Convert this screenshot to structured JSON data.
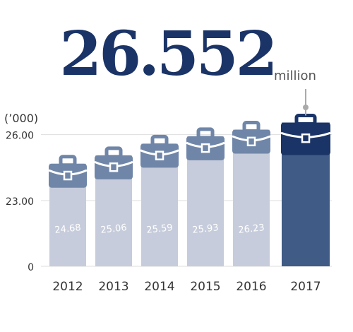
{
  "chart_data": {
    "type": "bar",
    "headline_unit": "million",
    "y_unit_label": "(’000)",
    "categories": [
      "2012",
      "2013",
      "2014",
      "2015",
      "2016",
      "2017"
    ],
    "values": [
      24.68,
      25.06,
      25.59,
      25.93,
      26.23,
      26.552
    ],
    "value_labels": [
      "24.68",
      "25.06",
      "25.59",
      "25.93",
      "26.23",
      "26.552"
    ],
    "colors": [
      "#c6ccdb",
      "#c6ccdb",
      "#c6ccdb",
      "#c6ccdb",
      "#c6ccdb",
      "#3f5b86"
    ],
    "ylim": [
      0,
      26.6
    ],
    "yticks": [
      {
        "value": 26,
        "label": "26.00"
      },
      {
        "value": 23,
        "label": "23.00"
      },
      0
    ],
    "grid": true
  }
}
